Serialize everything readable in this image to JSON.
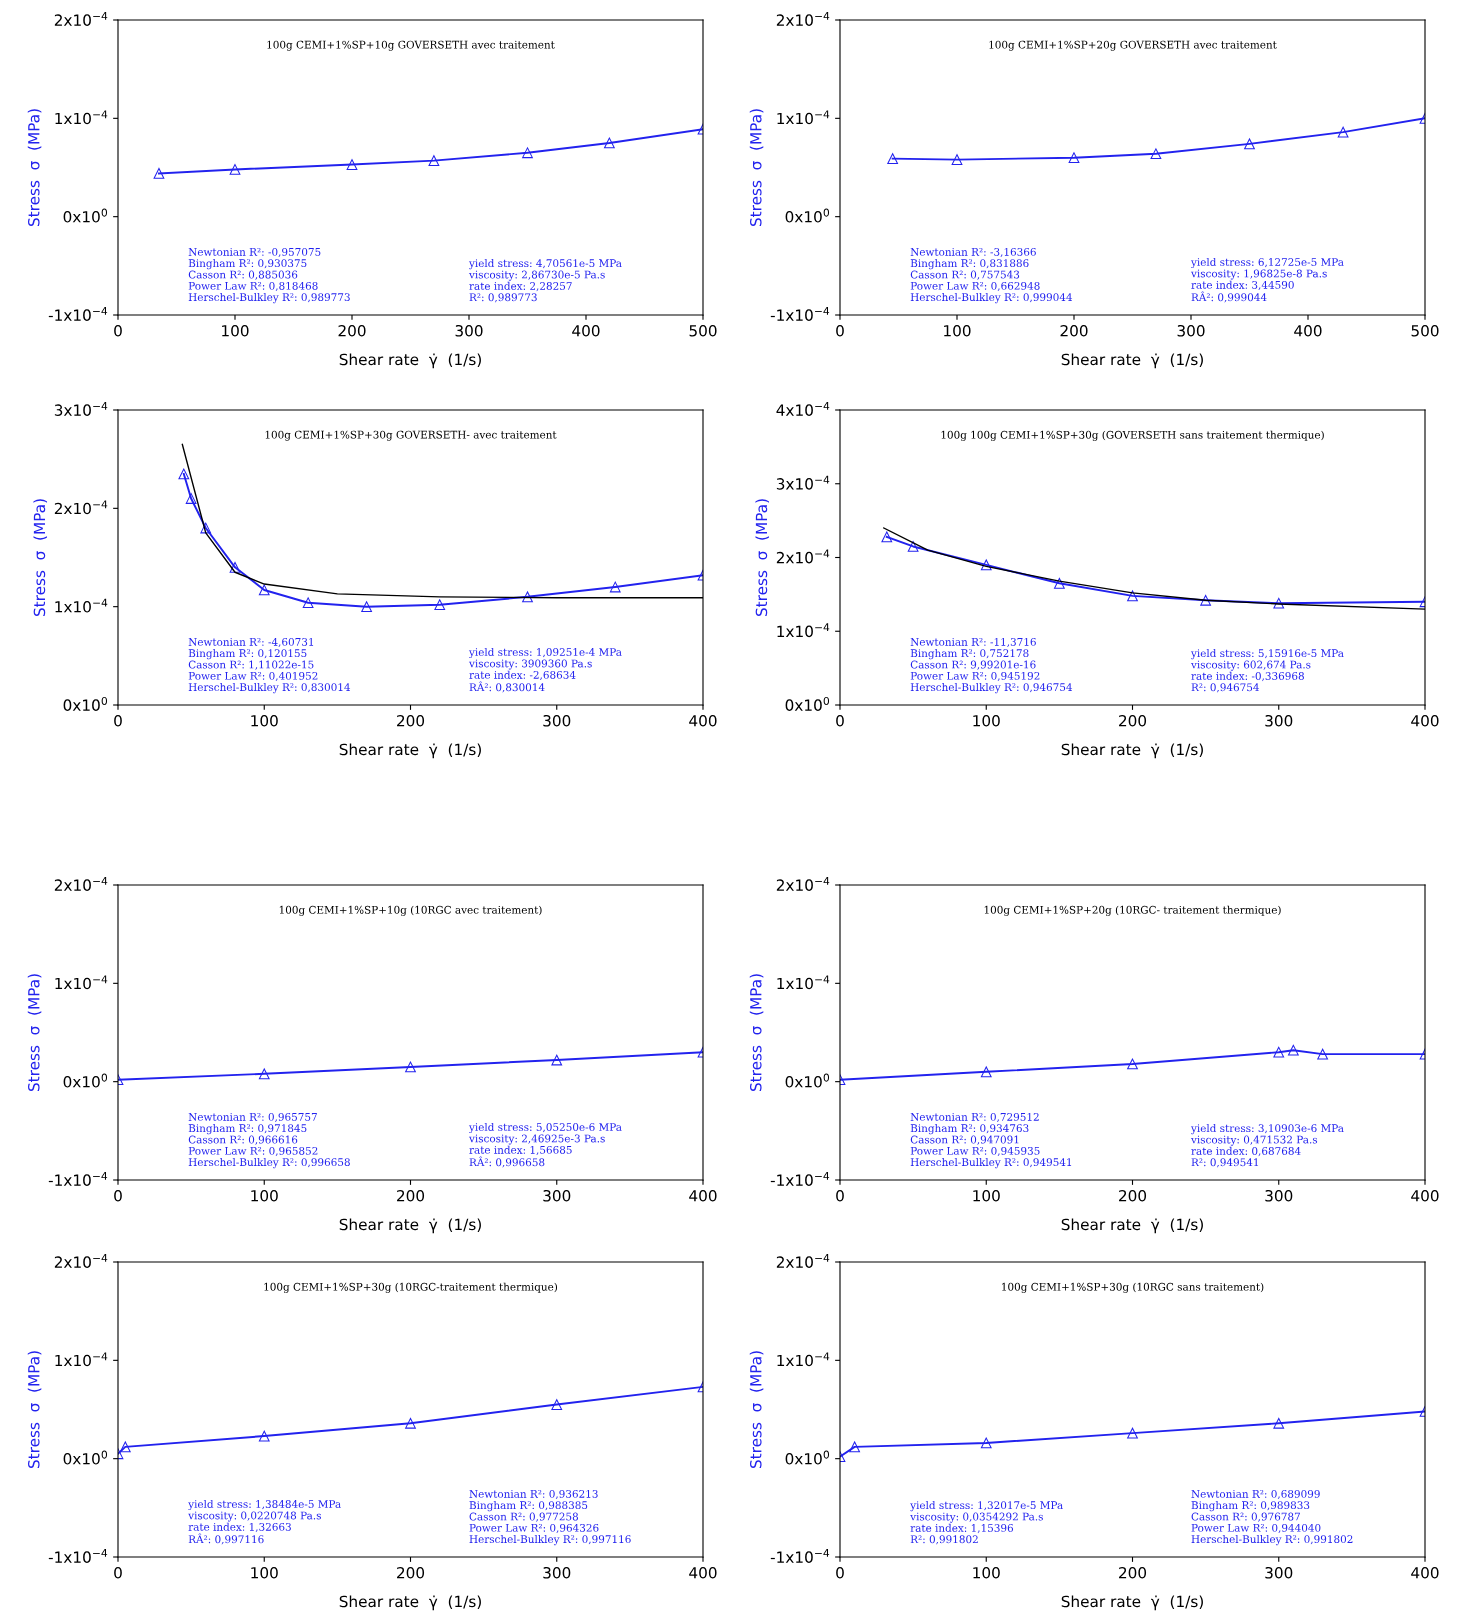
{
  "chart_data": [
    {
      "type": "line",
      "title": "100g CEMI+1%SP+10g GOVERSETH avec traitement",
      "xlabel": "Shear rate  γ̇  (1/s)",
      "ylabel": "Stress  σ  (MPa)",
      "marker": "triangle",
      "line_style": "solid",
      "series": [
        {
          "color": "#2222ee",
          "x": [
            35,
            100,
            200,
            270,
            350,
            420,
            500
          ],
          "values": [
            4.4e-05,
            4.8e-05,
            5.3e-05,
            5.7e-05,
            6.5e-05,
            7.5e-05,
            8.9e-05
          ]
        }
      ],
      "xlim": [
        0,
        500
      ],
      "xticks": [
        0,
        100,
        200,
        300,
        400,
        500
      ],
      "ylim": [
        -0.0001,
        0.0002
      ],
      "yticks": [
        {
          "value": -0.0001,
          "label": "-1x10$^{−4}$"
        },
        {
          "value": 0,
          "label": "0x10$^{0}$"
        },
        {
          "value": 0.0001,
          "label": "1x10$^{−4}$"
        },
        {
          "value": 0.0002,
          "label": "2x10$^{−4}$"
        }
      ],
      "annotations": [
        "Newtonian R²: -0,957075\nBingham R²: 0,930375\nCasson R²: 0,885036\nPower Law R²: 0,818468\nHerschel-Bulkley R²: 0,989773",
        "yield stress: 4,70561e-5 MPa\nviscosity: 2,86730e-5 Pa.s\nrate index: 2,28257\nR²: 0,989773"
      ]
    },
    {
      "type": "line",
      "title": "100g CEMI+1%SP+20g GOVERSETH avec traitement",
      "xlabel": "Shear rate  γ̇  (1/s)",
      "ylabel": "Stress  σ  (MPa)",
      "marker": "triangle",
      "line_style": "solid",
      "series": [
        {
          "color": "#2222ee",
          "x": [
            45,
            100,
            200,
            270,
            350,
            430,
            500
          ],
          "values": [
            5.9e-05,
            5.8e-05,
            6e-05,
            6.4e-05,
            7.4e-05,
            8.6e-05,
            0.0001
          ]
        }
      ],
      "xlim": [
        0,
        500
      ],
      "xticks": [
        0,
        100,
        200,
        300,
        400,
        500
      ],
      "ylim": [
        -0.0001,
        0.0002
      ],
      "yticks": [
        {
          "value": -0.0001,
          "label": "-1x10$^{−4}$"
        },
        {
          "value": 0,
          "label": "0x10$^{0}$"
        },
        {
          "value": 0.0001,
          "label": "1x10$^{−4}$"
        },
        {
          "value": 0.0002,
          "label": "2x10$^{−4}$"
        }
      ],
      "annotations": [
        "Newtonian R²: -3,16366\nBingham R²: 0,831886\nCasson R²: 0,757543\nPower Law R²: 0,662948\nHerschel-Bulkley R²: 0,999044",
        "yield stress: 6,12725e-5 MPa\nviscosity: 1,96825e-8 Pa.s\nrate index: 3,44590\nRÂ²: 0,999044"
      ]
    },
    {
      "type": "line",
      "title": "100g CEMI+1%SP+30g GOVERSETH- avec traitement",
      "xlabel": "Shear rate  γ̇  (1/s)",
      "ylabel": "Stress  σ  (MPa)",
      "marker": "triangle",
      "line_style": "solid",
      "series": [
        {
          "color": "#2222ee",
          "x": [
            45,
            50,
            60,
            80,
            100,
            130,
            170,
            220,
            280,
            340,
            400
          ],
          "values": [
            0.000235,
            0.00021,
            0.00018,
            0.00014,
            0.000117,
            0.000104,
            0.0001,
            0.000102,
            0.00011,
            0.00012,
            0.000132
          ]
        },
        {
          "color": "#000000",
          "marker": "none",
          "x": [
            44,
            60,
            80,
            100,
            150,
            220,
            300,
            400
          ],
          "values": [
            0.000265,
            0.000175,
            0.000135,
            0.000123,
            0.000113,
            0.00011,
            0.000109,
            0.000109
          ]
        }
      ],
      "xlim": [
        0,
        400
      ],
      "xticks": [
        0,
        100,
        200,
        300,
        400
      ],
      "ylim": [
        0,
        0.0003
      ],
      "yticks": [
        {
          "value": 0,
          "label": "0x10$^{0}$"
        },
        {
          "value": 0.0001,
          "label": "1x10$^{−4}$"
        },
        {
          "value": 0.0002,
          "label": "2x10$^{−4}$"
        },
        {
          "value": 0.0003,
          "label": "3x10$^{−4}$"
        }
      ],
      "annotations": [
        "Newtonian R²: -4,60731\nBingham R²: 0,120155\nCasson R²: 1,11022e-15\nPower Law R²: 0,401952\nHerschel-Bulkley R²: 0,830014",
        "yield stress: 1,09251e-4 MPa\nviscosity: 3909360 Pa.s\nrate index: -2,68634\nRÂ²: 0,830014"
      ]
    },
    {
      "type": "line",
      "title": "100g 100g CEMI+1%SP+30g (GOVERSETH sans traitement thermique)",
      "xlabel": "Shear rate  γ̇  (1/s)",
      "ylabel": "Stress  σ  (MPa)",
      "marker": "triangle",
      "line_style": "solid",
      "series": [
        {
          "color": "#2222ee",
          "x": [
            32,
            50,
            100,
            150,
            200,
            250,
            300,
            400
          ],
          "values": [
            0.000228,
            0.000215,
            0.00019,
            0.000165,
            0.000148,
            0.000142,
            0.000138,
            0.00014
          ]
        },
        {
          "color": "#000000",
          "marker": "none",
          "x": [
            30,
            60,
            100,
            150,
            200,
            250,
            300,
            400
          ],
          "values": [
            0.00024,
            0.00021,
            0.000188,
            0.000168,
            0.000152,
            0.000142,
            0.000137,
            0.00013
          ]
        }
      ],
      "xlim": [
        0,
        400
      ],
      "xticks": [
        0,
        100,
        200,
        300,
        400
      ],
      "ylim": [
        0,
        0.0004
      ],
      "yticks": [
        {
          "value": 0,
          "label": "0x10$^{0}$"
        },
        {
          "value": 0.0001,
          "label": "1x10$^{−4}$"
        },
        {
          "value": 0.0002,
          "label": "2x10$^{−4}$"
        },
        {
          "value": 0.0003,
          "label": "3x10$^{−4}$"
        },
        {
          "value": 0.0004,
          "label": "4x10$^{−4}$"
        }
      ],
      "annotations": [
        "Newtonian R²: -11,3716\nBingham R²: 0,752178\nCasson R²: 9,99201e-16\nPower Law R²: 0,945192\nHerschel-Bulkley R²: 0,946754",
        "yield stress: 5,15916e-5 MPa\nviscosity: 602,674 Pa.s\nrate index: -0,336968\nR²: 0,946754"
      ]
    },
    {
      "type": "line",
      "title": "100g CEMI+1%SP+10g (10RGC avec traitement)",
      "xlabel": "Shear rate  γ̇  (1/s)",
      "ylabel": "Stress  σ  (MPa)",
      "marker": "triangle",
      "line_style": "solid",
      "series": [
        {
          "color": "#2222ee",
          "x": [
            0,
            100,
            200,
            300,
            400
          ],
          "values": [
            2e-06,
            8e-06,
            1.5e-05,
            2.2e-05,
            3e-05
          ]
        }
      ],
      "xlim": [
        0,
        400
      ],
      "xticks": [
        0,
        100,
        200,
        300,
        400
      ],
      "ylim": [
        -0.0001,
        0.0002
      ],
      "yticks": [
        {
          "value": -0.0001,
          "label": "-1x10$^{−4}$"
        },
        {
          "value": 0,
          "label": "0x10$^{0}$"
        },
        {
          "value": 0.0001,
          "label": "1x10$^{−4}$"
        },
        {
          "value": 0.0002,
          "label": "2x10$^{−4}$"
        }
      ],
      "annotations": [
        "Newtonian R²: 0,965757\nBingham R²: 0,971845\nCasson R²: 0,966616\nPower Law R²: 0,965852\nHerschel-Bulkley R²: 0,996658",
        "yield stress: 5,05250e-6 MPa\nviscosity: 2,46925e-3 Pa.s\nrate index: 1,56685\nRÂ²: 0,996658"
      ]
    },
    {
      "type": "line",
      "title": "100g CEMI+1%SP+20g (10RGC- traitement thermique)",
      "xlabel": "Shear rate  γ̇  (1/s)",
      "ylabel": "Stress  σ  (MPa)",
      "marker": "triangle",
      "line_style": "solid",
      "series": [
        {
          "color": "#2222ee",
          "x": [
            0,
            100,
            200,
            300,
            310,
            330,
            400
          ],
          "values": [
            2e-06,
            1e-05,
            1.8e-05,
            3e-05,
            3.2e-05,
            2.8e-05,
            2.8e-05
          ]
        }
      ],
      "xlim": [
        0,
        400
      ],
      "xticks": [
        0,
        100,
        200,
        300,
        400
      ],
      "ylim": [
        -0.0001,
        0.0002
      ],
      "yticks": [
        {
          "value": -0.0001,
          "label": "-1x10$^{−4}$"
        },
        {
          "value": 0,
          "label": "0x10$^{0}$"
        },
        {
          "value": 0.0001,
          "label": "1x10$^{−4}$"
        },
        {
          "value": 0.0002,
          "label": "2x10$^{−4}$"
        }
      ],
      "annotations": [
        "Newtonian R²: 0,729512\nBingham R²: 0,934763\nCasson R²: 0,947091\nPower Law R²: 0,945935\nHerschel-Bulkley R²: 0,949541",
        "yield stress: 3,10903e-6 MPa\nviscosity: 0,471532 Pa.s\nrate index: 0,687684\nR²: 0,949541"
      ]
    },
    {
      "type": "line",
      "title": "100g CEMI+1%SP+30g (10RGC-traitement thermique)",
      "xlabel": "Shear rate  γ̇  (1/s)",
      "ylabel": "Stress  σ  (MPa)",
      "marker": "triangle",
      "line_style": "solid",
      "series": [
        {
          "color": "#2222ee",
          "x": [
            0,
            5,
            100,
            200,
            300,
            400
          ],
          "values": [
            5e-06,
            1.2e-05,
            2.3e-05,
            3.6e-05,
            5.5e-05,
            7.3e-05
          ]
        }
      ],
      "xlim": [
        0,
        400
      ],
      "xticks": [
        0,
        100,
        200,
        300,
        400
      ],
      "ylim": [
        -0.0001,
        0.0002
      ],
      "yticks": [
        {
          "value": -0.0001,
          "label": "-1x10$^{−4}$"
        },
        {
          "value": 0,
          "label": "0x10$^{0}$"
        },
        {
          "value": 0.0001,
          "label": "1x10$^{−4}$"
        },
        {
          "value": 0.0002,
          "label": "2x10$^{−4}$"
        }
      ],
      "annotations": [
        "yield stress: 1,38484e-5 MPa\nviscosity: 0,0220748 Pa.s\nrate index: 1,32663\nRÂ²: 0,997116",
        "Newtonian R²: 0,936213\nBingham R²: 0,988385\nCasson R²: 0,977258\nPower Law R²: 0,964326\nHerschel-Bulkley R²: 0,997116"
      ]
    },
    {
      "type": "line",
      "title": "100g CEMI+1%SP+30g (10RGC sans traitement)",
      "xlabel": "Shear rate  γ̇  (1/s)",
      "ylabel": "Stress  σ  (MPa)",
      "marker": "triangle",
      "line_style": "solid",
      "series": [
        {
          "color": "#2222ee",
          "x": [
            0,
            10,
            100,
            200,
            300,
            400
          ],
          "values": [
            2e-06,
            1.2e-05,
            1.6e-05,
            2.6e-05,
            3.6e-05,
            4.8e-05
          ]
        }
      ],
      "xlim": [
        0,
        400
      ],
      "xticks": [
        0,
        100,
        200,
        300,
        400
      ],
      "ylim": [
        -0.0001,
        0.0002
      ],
      "yticks": [
        {
          "value": -0.0001,
          "label": "-1x10$^{−4}$"
        },
        {
          "value": 0,
          "label": "0x10$^{0}$"
        },
        {
          "value": 0.0001,
          "label": "1x10$^{−4}$"
        },
        {
          "value": 0.0002,
          "label": "2x10$^{−4}$"
        }
      ],
      "annotations": [
        "yield stress: 1,32017e-5 MPa\nviscosity: 0,0354292 Pa.s\nrate index: 1,15396\nR²: 0,991802",
        "Newtonian R²: 0,689099\nBingham R²: 0,989833\nCasson R²: 0,976787\nPower Law R²: 0,944040\nHerschel-Bulkley R²: 0,991802"
      ]
    }
  ]
}
